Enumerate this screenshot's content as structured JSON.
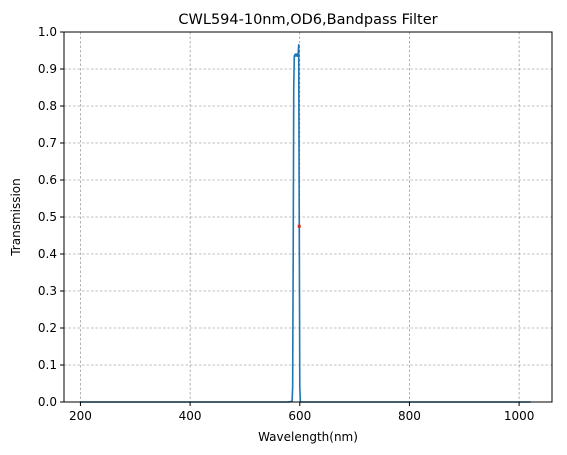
{
  "chart_data": {
    "type": "line",
    "title": "CWL594-10nm,OD6,Bandpass Filter",
    "xlabel": "Wavelength(nm)",
    "ylabel": "Transmission",
    "xlim": [
      170,
      1060
    ],
    "ylim": [
      0,
      1.0
    ],
    "xticks": [
      200,
      400,
      600,
      800,
      1000
    ],
    "yticks": [
      0.0,
      0.1,
      0.2,
      0.3,
      0.4,
      0.5,
      0.6,
      0.7,
      0.8,
      0.9,
      1.0
    ],
    "grid": true,
    "series": [
      {
        "color": "#1f77b4",
        "x": [
          200,
          580,
          586,
          587,
          588,
          589,
          590,
          592,
          593,
          594,
          595,
          596,
          597,
          598,
          599,
          600,
          601,
          602,
          1020
        ],
        "y": [
          0.0,
          0.0,
          0.002,
          0.04,
          0.4,
          0.85,
          0.935,
          0.94,
          0.935,
          0.94,
          0.94,
          0.935,
          0.94,
          0.965,
          0.5,
          0.04,
          0.002,
          0.0,
          0.0
        ]
      }
    ],
    "annotations": [
      {
        "type": "marker",
        "x": 599,
        "y": 0.475,
        "color": "#d62728"
      }
    ]
  }
}
